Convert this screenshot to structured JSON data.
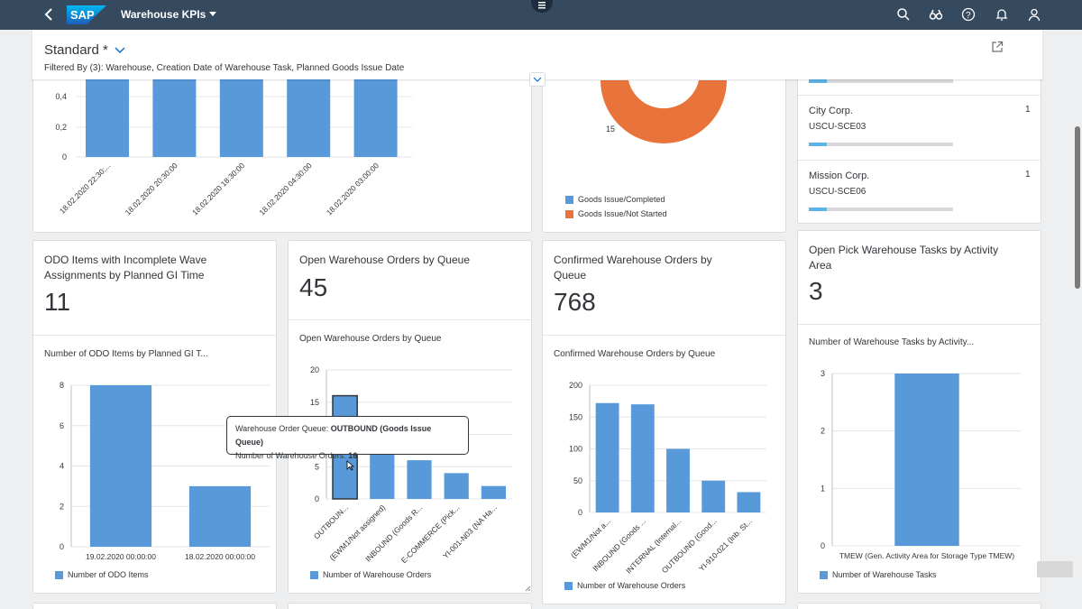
{
  "shell": {
    "app_title": "Warehouse KPIs",
    "logo_text": "SAP",
    "icons": [
      "search-icon",
      "binoculars-icon",
      "help-icon",
      "notifications-icon",
      "user-icon"
    ]
  },
  "header": {
    "variant": "Standard *",
    "filter_text": "Filtered By (3): Warehouse, Creation Date of Warehouse Task, Planned Goods Issue Date"
  },
  "top_left_chart": {
    "chart_data": {
      "type": "bar",
      "categories": [
        "18.02.2020 22:30:...",
        "18.02.2020 20:30:00",
        "18.02.2020 18:30:00",
        "18.02.2020 04:30:00",
        "18.02.2020 03:00:00"
      ],
      "values": [
        0.5,
        0.5,
        0.5,
        0.5,
        0.5
      ],
      "yticks": [
        "0,4",
        "0,2",
        "0"
      ],
      "color": "#5899da"
    }
  },
  "top_middle_chart": {
    "label_value": "15",
    "legend": [
      "Goods Issue/Completed",
      "Goods Issue/Not Started"
    ],
    "colors": [
      "#5899da",
      "#e8743b"
    ]
  },
  "top_right_list": {
    "items": [
      {
        "title": "City Corp.",
        "subtitle": "USCU-SCE03",
        "count": "1"
      },
      {
        "title": "Mission Corp.",
        "subtitle": "USCU-SCE06",
        "count": "1"
      }
    ]
  },
  "card1": {
    "title_line1": "ODO Items with Incomplete Wave",
    "title_line2": "Assignments by Planned GI Time",
    "kpi": "11",
    "chart_title": "Number of ODO Items by Planned GI T...",
    "legend": "Number of ODO Items",
    "chart_data": {
      "type": "bar",
      "categories": [
        "19.02.2020 00:00:00",
        "18.02.2020 00:00:00"
      ],
      "values": [
        8,
        3
      ],
      "ylim": [
        0,
        8
      ],
      "yticks": [
        0,
        2,
        4,
        6,
        8
      ]
    }
  },
  "card2": {
    "title": "Open Warehouse Orders by Queue",
    "kpi": "45",
    "chart_title": "Open Warehouse Orders by Queue",
    "legend": "Number of Warehouse Orders",
    "chart_data": {
      "type": "bar",
      "categories": [
        "OUTBOUN...",
        "(EWM1/Not assigned)",
        "INBOUND (Goods R...",
        "E-COMMERCE (Pick...",
        "YI-001-N03 (NA Ha..."
      ],
      "values": [
        16,
        7,
        6,
        4,
        2
      ],
      "ylim": [
        0,
        20
      ],
      "yticks": [
        0,
        5,
        10,
        15,
        20
      ]
    },
    "tooltip": {
      "line1_label": "Warehouse Order Queue:",
      "line1_value": "OUTBOUND (Goods Issue Queue)",
      "line2_label": "Number of Warehouse Orders:",
      "line2_value": "16"
    }
  },
  "card3": {
    "title_line1": "Confirmed Warehouse Orders by",
    "title_line2": "Queue",
    "kpi": "768",
    "chart_title": "Confirmed Warehouse Orders by Queue",
    "legend": "Number of Warehouse Orders",
    "chart_data": {
      "type": "bar",
      "categories": [
        "(EWM1/Not a...",
        "INBOUND (Goods ...",
        "INTERNAL (Internal...",
        "OUTBOUND (Good...",
        "YI-910-021 (Inb. St..."
      ],
      "values": [
        172,
        170,
        100,
        50,
        32
      ],
      "ylim": [
        0,
        200
      ],
      "yticks": [
        0,
        50,
        100,
        150,
        200
      ]
    }
  },
  "card4": {
    "title_line1": "Open Pick Warehouse Tasks by Activity",
    "title_line2": "Area",
    "kpi": "3",
    "chart_title": "Number of Warehouse Tasks by Activity...",
    "legend": "Number of Warehouse Tasks",
    "chart_data": {
      "type": "bar",
      "categories": [
        "TMEW (Gen. Activity Area for Storage Type TMEW)"
      ],
      "values": [
        3
      ],
      "ylim": [
        0,
        3
      ],
      "yticks": [
        0,
        1,
        2,
        3
      ]
    }
  }
}
